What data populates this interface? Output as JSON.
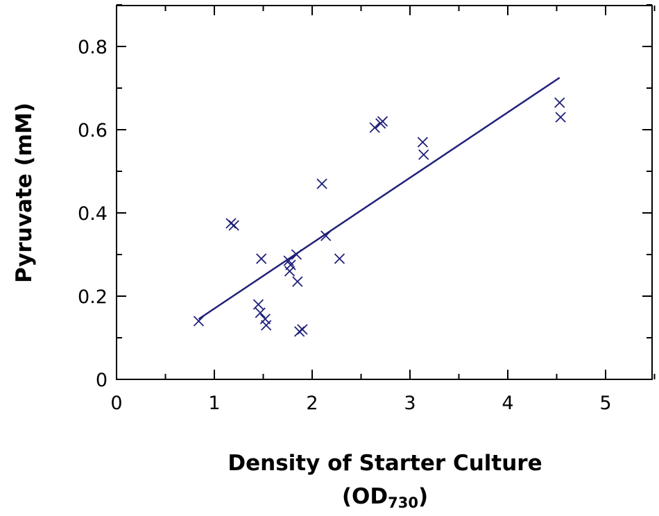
{
  "chart_data": {
    "type": "scatter",
    "xlabel": "Density of Starter Culture",
    "xlabel_line2_main": "(OD",
    "xlabel_line2_sub": "730",
    "xlabel_line2_end": ")",
    "ylabel": "Pyruvate (mM)",
    "xlim": [
      0,
      5.5
    ],
    "ylim": [
      0,
      0.9
    ],
    "x_ticks": [
      "0",
      "1",
      "2",
      "3",
      "4",
      "5"
    ],
    "y_ticks": [
      "0",
      "0.2",
      "0.4",
      "0.6",
      "0.8"
    ],
    "marker_color": "#1f1f7a",
    "line_color": "#1f1f7a",
    "points": [
      {
        "x": 0.84,
        "y": 0.14
      },
      {
        "x": 1.17,
        "y": 0.375
      },
      {
        "x": 1.2,
        "y": 0.37
      },
      {
        "x": 1.45,
        "y": 0.18
      },
      {
        "x": 1.47,
        "y": 0.16
      },
      {
        "x": 1.48,
        "y": 0.29
      },
      {
        "x": 1.52,
        "y": 0.145
      },
      {
        "x": 1.53,
        "y": 0.13
      },
      {
        "x": 1.76,
        "y": 0.285
      },
      {
        "x": 1.77,
        "y": 0.26
      },
      {
        "x": 1.78,
        "y": 0.275
      },
      {
        "x": 1.84,
        "y": 0.3
      },
      {
        "x": 1.85,
        "y": 0.235
      },
      {
        "x": 1.87,
        "y": 0.115
      },
      {
        "x": 1.9,
        "y": 0.12
      },
      {
        "x": 2.1,
        "y": 0.47
      },
      {
        "x": 2.14,
        "y": 0.345
      },
      {
        "x": 2.28,
        "y": 0.29
      },
      {
        "x": 2.64,
        "y": 0.605
      },
      {
        "x": 2.7,
        "y": 0.615
      },
      {
        "x": 2.72,
        "y": 0.62
      },
      {
        "x": 3.13,
        "y": 0.57
      },
      {
        "x": 3.14,
        "y": 0.54
      },
      {
        "x": 4.53,
        "y": 0.665
      },
      {
        "x": 4.54,
        "y": 0.63
      }
    ],
    "fit_line": {
      "x": [
        0.84,
        4.53
      ],
      "y": [
        0.145,
        0.725
      ]
    },
    "grid": false
  }
}
